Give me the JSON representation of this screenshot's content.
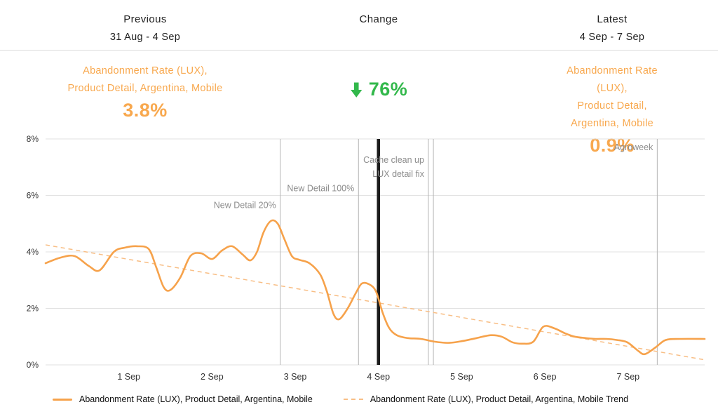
{
  "header": {
    "previous": {
      "title": "Previous",
      "range": "31 Aug - 4 Sep"
    },
    "change": {
      "title": "Change"
    },
    "latest": {
      "title": "Latest",
      "range": "4 Sep - 7 Sep"
    }
  },
  "summary": {
    "previous": {
      "metric_line1": "Abandonment Rate (LUX),",
      "metric_line2": "Product Detail, Argentina, Mobile",
      "value": "3.8%"
    },
    "change": {
      "direction": "down",
      "value": "76%"
    },
    "latest": {
      "metric_line1": "Abandonment Rate (LUX),",
      "metric_line2": "Product Detail, Argentina, Mobile",
      "value": "0.9%"
    }
  },
  "colors": {
    "series_orange": "#F6A24B",
    "trend_orange": "#F8BE85",
    "kpi_orange": "#F8A84E",
    "change_green": "#32B84B",
    "annotation_gray": "#8c8c8c",
    "annotation_line_gray": "#b5b5b5",
    "grid_gray": "#e2e2e2",
    "thick_marker_black": "#1c1c1c"
  },
  "chart_data": {
    "type": "line",
    "title": "",
    "xlabel": "",
    "ylabel": "",
    "x_axis": {
      "min": 0,
      "max": 7.92,
      "note": "x in days, 1 = 1 Sep, 0 = 31 Aug",
      "ticks": [
        {
          "x": 1,
          "label": "1 Sep"
        },
        {
          "x": 2,
          "label": "2 Sep"
        },
        {
          "x": 3,
          "label": "3 Sep"
        },
        {
          "x": 4,
          "label": "4 Sep"
        },
        {
          "x": 5,
          "label": "5 Sep"
        },
        {
          "x": 6,
          "label": "6 Sep"
        },
        {
          "x": 7,
          "label": "7 Sep"
        }
      ]
    },
    "y_axis": {
      "min": 0,
      "max": 8,
      "ticks": [
        {
          "y": 0,
          "label": "0%"
        },
        {
          "y": 2,
          "label": "2%"
        },
        {
          "y": 4,
          "label": "4%"
        },
        {
          "y": 6,
          "label": "6%"
        },
        {
          "y": 8,
          "label": "8%"
        }
      ]
    },
    "series": [
      {
        "name": "Abandonment Rate (LUX), Product Detail, Argentina, Mobile",
        "style": "solid",
        "color": "#F6A24B",
        "unit": "%",
        "points": [
          [
            0.0,
            3.6
          ],
          [
            0.18,
            3.8
          ],
          [
            0.35,
            3.85
          ],
          [
            0.52,
            3.5
          ],
          [
            0.65,
            3.35
          ],
          [
            0.82,
            4.0
          ],
          [
            0.95,
            4.15
          ],
          [
            1.1,
            4.2
          ],
          [
            1.24,
            4.1
          ],
          [
            1.33,
            3.45
          ],
          [
            1.42,
            2.75
          ],
          [
            1.5,
            2.65
          ],
          [
            1.62,
            3.1
          ],
          [
            1.74,
            3.85
          ],
          [
            1.87,
            3.95
          ],
          [
            2.0,
            3.75
          ],
          [
            2.12,
            4.05
          ],
          [
            2.24,
            4.2
          ],
          [
            2.37,
            3.9
          ],
          [
            2.46,
            3.7
          ],
          [
            2.54,
            4.0
          ],
          [
            2.62,
            4.7
          ],
          [
            2.71,
            5.1
          ],
          [
            2.79,
            5.0
          ],
          [
            2.87,
            4.45
          ],
          [
            2.96,
            3.85
          ],
          [
            3.05,
            3.72
          ],
          [
            3.17,
            3.6
          ],
          [
            3.3,
            3.2
          ],
          [
            3.38,
            2.6
          ],
          [
            3.46,
            1.8
          ],
          [
            3.53,
            1.62
          ],
          [
            3.63,
            2.0
          ],
          [
            3.72,
            2.5
          ],
          [
            3.8,
            2.88
          ],
          [
            3.89,
            2.85
          ],
          [
            3.97,
            2.6
          ],
          [
            4.05,
            1.85
          ],
          [
            4.13,
            1.3
          ],
          [
            4.22,
            1.05
          ],
          [
            4.35,
            0.95
          ],
          [
            4.51,
            0.92
          ],
          [
            4.68,
            0.82
          ],
          [
            4.85,
            0.78
          ],
          [
            5.02,
            0.85
          ],
          [
            5.18,
            0.95
          ],
          [
            5.35,
            1.05
          ],
          [
            5.48,
            1.0
          ],
          [
            5.61,
            0.8
          ],
          [
            5.73,
            0.75
          ],
          [
            5.86,
            0.82
          ],
          [
            5.98,
            1.35
          ],
          [
            6.11,
            1.3
          ],
          [
            6.24,
            1.12
          ],
          [
            6.36,
            1.0
          ],
          [
            6.49,
            0.95
          ],
          [
            6.61,
            0.92
          ],
          [
            6.74,
            0.92
          ],
          [
            6.87,
            0.88
          ],
          [
            6.99,
            0.8
          ],
          [
            7.12,
            0.5
          ],
          [
            7.2,
            0.38
          ],
          [
            7.33,
            0.62
          ],
          [
            7.45,
            0.88
          ],
          [
            7.62,
            0.92
          ],
          [
            7.92,
            0.92
          ]
        ]
      },
      {
        "name": "Abandonment Rate (LUX), Product Detail, Argentina, Mobile Trend",
        "style": "dashed",
        "color": "#F8BE85",
        "unit": "%",
        "points": [
          [
            0,
            4.25
          ],
          [
            7.92,
            0.18
          ]
        ]
      }
    ],
    "annotations": [
      {
        "name": "new-detail-20",
        "label": "New Detail 20%",
        "x": 2.82,
        "label_y_pct": 5.55,
        "line_style": "thin"
      },
      {
        "name": "new-detail-100",
        "label": "New Detail 100%",
        "x": 3.76,
        "label_y_pct": 6.15,
        "line_style": "thin"
      },
      {
        "name": "period-split",
        "label": "",
        "x": 4.0,
        "line_style": "thick"
      },
      {
        "name": "cache-clean-up-lux-detail-fix",
        "label": "Cache clean up\nLUX detail fix",
        "x": 4.6,
        "x2": 4.66,
        "label_y_pct": 7.15,
        "line_style": "thin"
      },
      {
        "name": "agroweek",
        "label": "Agroweek",
        "x": 7.35,
        "label_y_pct": 7.6,
        "line_style": "thin"
      }
    ],
    "grid": true,
    "legend_position": "bottom"
  },
  "legend": {
    "items": [
      {
        "label": "Abandonment Rate (LUX), Product Detail, Argentina, Mobile",
        "style": "solid"
      },
      {
        "label": "Abandonment Rate (LUX), Product Detail, Argentina, Mobile Trend",
        "style": "dashed"
      }
    ]
  }
}
